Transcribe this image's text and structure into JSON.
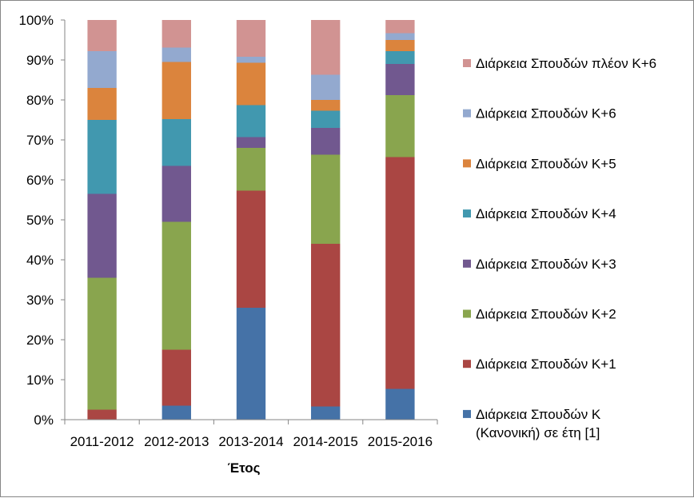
{
  "chart_data": {
    "type": "bar",
    "stacked": true,
    "percent_stacked": true,
    "title": "",
    "xlabel": "Έτος",
    "ylabel": "",
    "ylim": [
      0,
      100
    ],
    "y_ticks": [
      "0%",
      "10%",
      "20%",
      "30%",
      "40%",
      "50%",
      "60%",
      "70%",
      "80%",
      "90%",
      "100%"
    ],
    "grid": false,
    "legend_position": "right",
    "categories": [
      "2011-2012",
      "2012-2013",
      "2013-2014",
      "2014-2015",
      "2015-2016"
    ],
    "series": [
      {
        "name": "Διάρκεια Σπουδών Κ (Κανονική) σε έτη [1]",
        "legend_lines": [
          "Διάρκεια Σπουδών Κ",
          "(Κανονική) σε έτη [1]"
        ],
        "color": "#4572A7",
        "values": [
          0,
          3.5,
          28,
          3.3,
          7.7
        ]
      },
      {
        "name": "Διάρκεια Σπουδών Κ+1",
        "legend_lines": [
          "Διάρκεια Σπουδών Κ+1"
        ],
        "color": "#AA4643",
        "values": [
          2.5,
          14,
          29.3,
          40.7,
          58
        ]
      },
      {
        "name": "Διάρκεια Σπουδών Κ+2",
        "legend_lines": [
          "Διάρκεια Σπουδών Κ+2"
        ],
        "color": "#89A54E",
        "values": [
          33,
          32,
          10.7,
          22.3,
          15.5
        ]
      },
      {
        "name": "Διάρκεια Σπουδών Κ+3",
        "legend_lines": [
          "Διάρκεια Σπουδών Κ+3"
        ],
        "color": "#71588F",
        "values": [
          21,
          14,
          2.7,
          6.7,
          7.8
        ]
      },
      {
        "name": "Διάρκεια Σπουδών Κ+4",
        "legend_lines": [
          "Διάρκεια Σπουδών Κ+4"
        ],
        "color": "#4198AF",
        "values": [
          18.5,
          11.7,
          8,
          4.3,
          3.2
        ]
      },
      {
        "name": "Διάρκεια Σπουδών Κ+5",
        "legend_lines": [
          "Διάρκεια Σπουδών Κ+5"
        ],
        "color": "#DB843D",
        "values": [
          8,
          14.3,
          10.6,
          2.7,
          2.8
        ]
      },
      {
        "name": "Διάρκεια Σπουδών Κ+6",
        "legend_lines": [
          "Διάρκεια Σπουδών Κ+6"
        ],
        "color": "#93A9CF",
        "values": [
          9.2,
          3.6,
          1.5,
          6.3,
          1.7
        ]
      },
      {
        "name": "Διάρκεια Σπουδών πλέον Κ+6",
        "legend_lines": [
          "Διάρκεια Σπουδών πλέον Κ+6"
        ],
        "color": "#D19392",
        "values": [
          7.8,
          6.9,
          9.2,
          13.7,
          3.3
        ]
      }
    ]
  }
}
